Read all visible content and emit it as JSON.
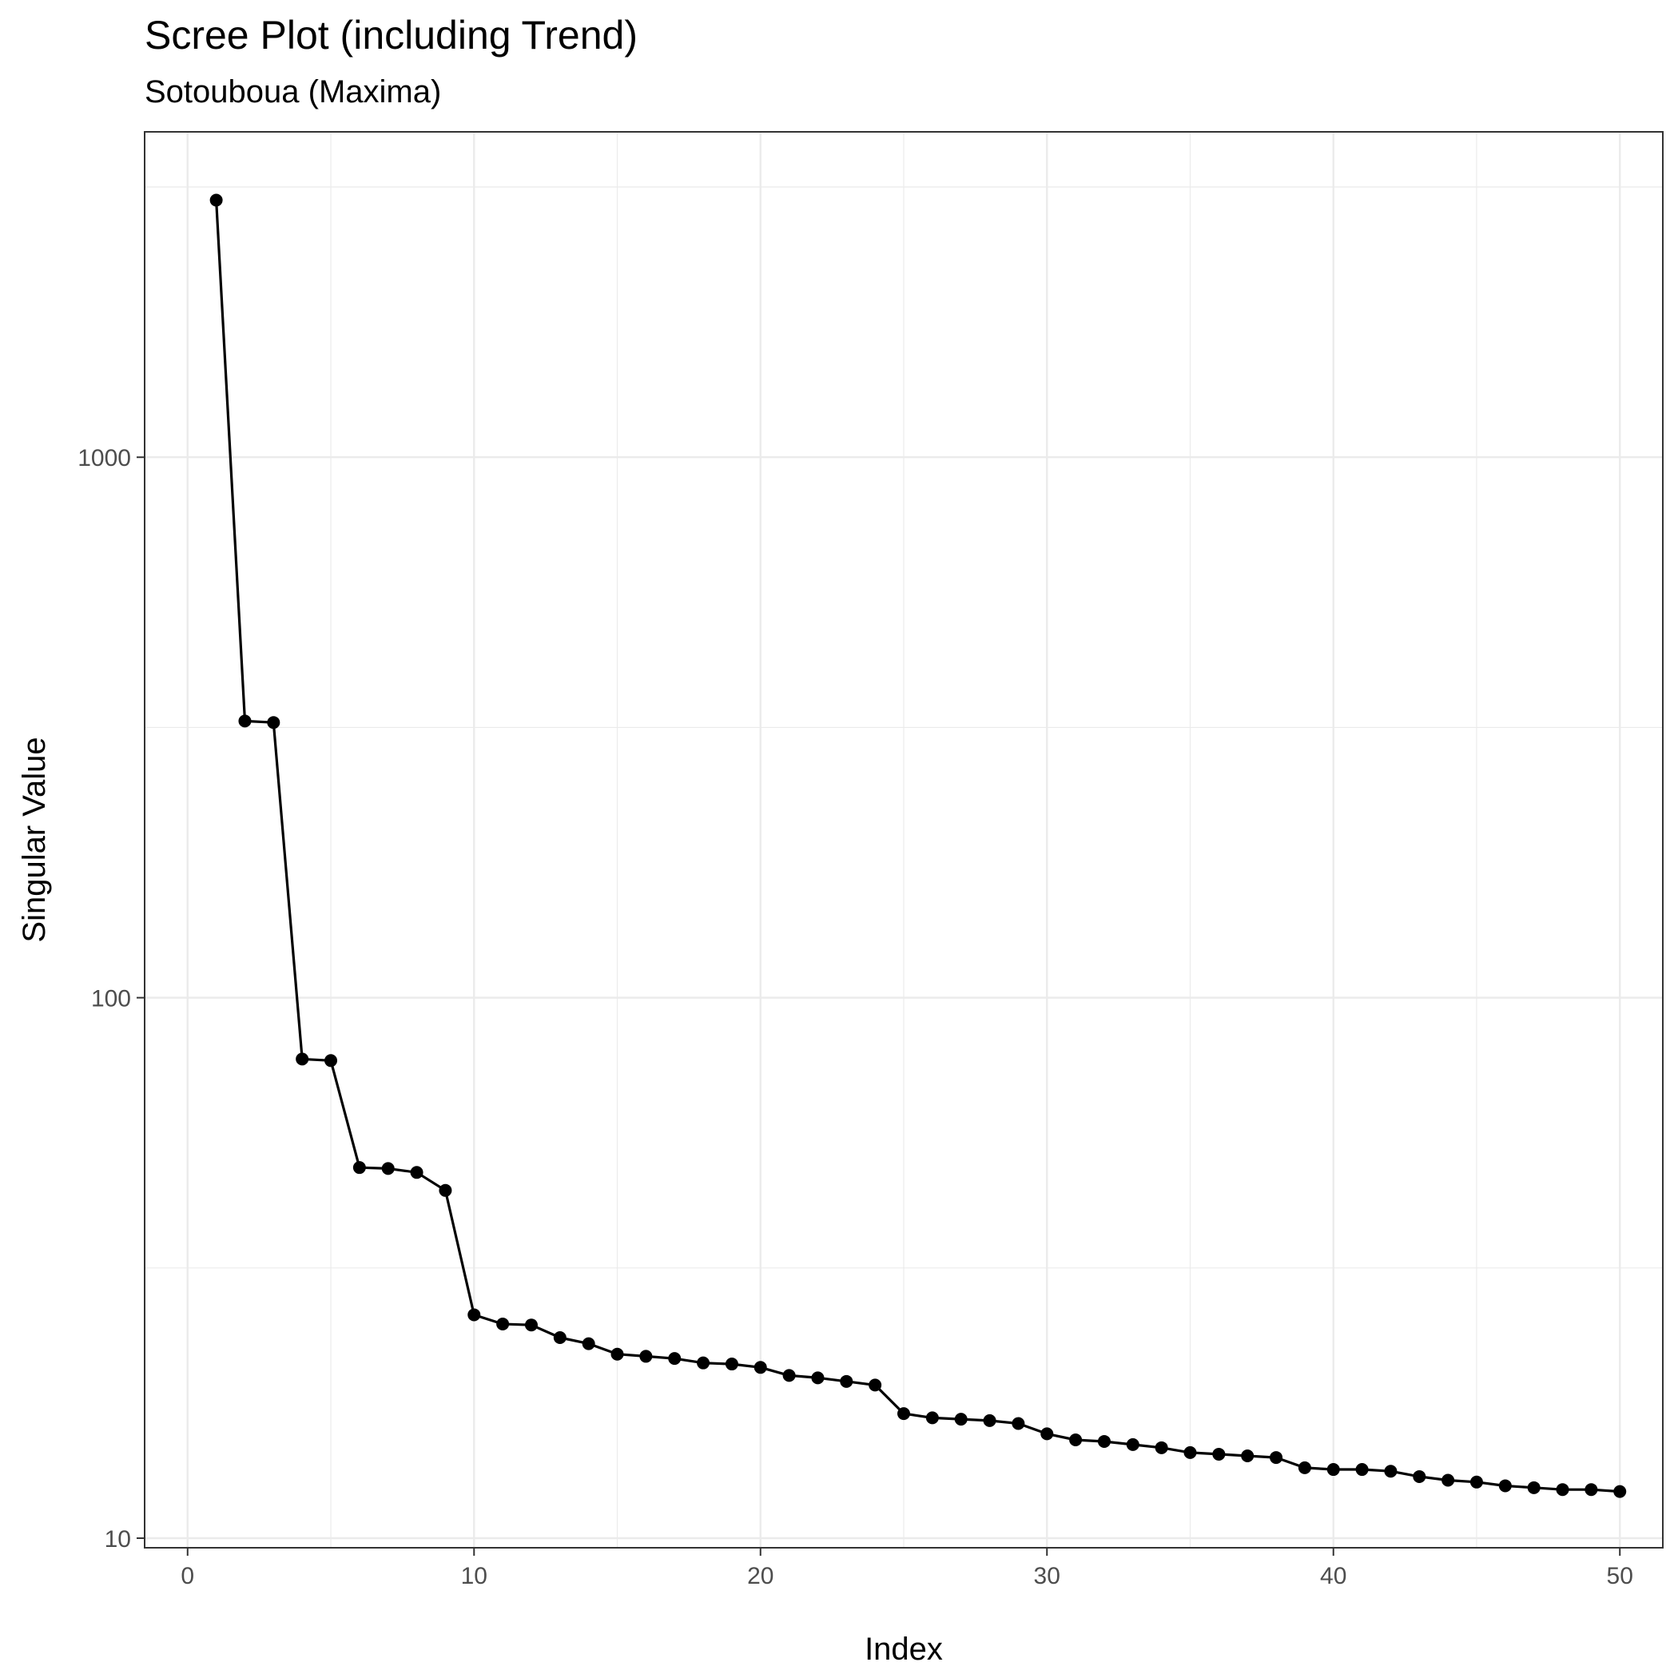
{
  "chart_data": {
    "type": "line",
    "title": "Scree Plot (including Trend)",
    "subtitle": "Sotouboua (Maxima)",
    "xlabel": "Index",
    "ylabel": "Singular Value",
    "xlim": [
      -1.5,
      51.5
    ],
    "ylim": [
      9.6,
      4000
    ],
    "y_scale": "log10",
    "x_ticks": [
      0,
      10,
      20,
      30,
      40,
      50
    ],
    "x_tick_labels": [
      "0",
      "10",
      "20",
      "30",
      "40",
      "50"
    ],
    "y_ticks": [
      10,
      100,
      1000
    ],
    "y_tick_labels": [
      "10",
      "100",
      "1000"
    ],
    "grid": true,
    "point_markers": true,
    "series_color": "#000000",
    "x": [
      1,
      2,
      3,
      4,
      5,
      6,
      7,
      8,
      9,
      10,
      11,
      12,
      13,
      14,
      15,
      16,
      17,
      18,
      19,
      20,
      21,
      22,
      23,
      24,
      25,
      26,
      27,
      28,
      29,
      30,
      31,
      32,
      33,
      34,
      35,
      36,
      37,
      38,
      39,
      40,
      41,
      42,
      43,
      44,
      45,
      46,
      47,
      48,
      49,
      50
    ],
    "y": [
      2990,
      325,
      323,
      77.0,
      76.5,
      48.5,
      48.3,
      47.5,
      44.0,
      25.9,
      24.9,
      24.8,
      23.5,
      22.9,
      21.9,
      21.7,
      21.5,
      21.1,
      21.0,
      20.7,
      20.0,
      19.8,
      19.5,
      19.2,
      17.0,
      16.7,
      16.6,
      16.5,
      16.3,
      15.6,
      15.2,
      15.1,
      14.9,
      14.7,
      14.4,
      14.3,
      14.2,
      14.1,
      13.5,
      13.4,
      13.4,
      13.3,
      13.0,
      12.8,
      12.7,
      12.5,
      12.4,
      12.3,
      12.3,
      12.2
    ]
  }
}
